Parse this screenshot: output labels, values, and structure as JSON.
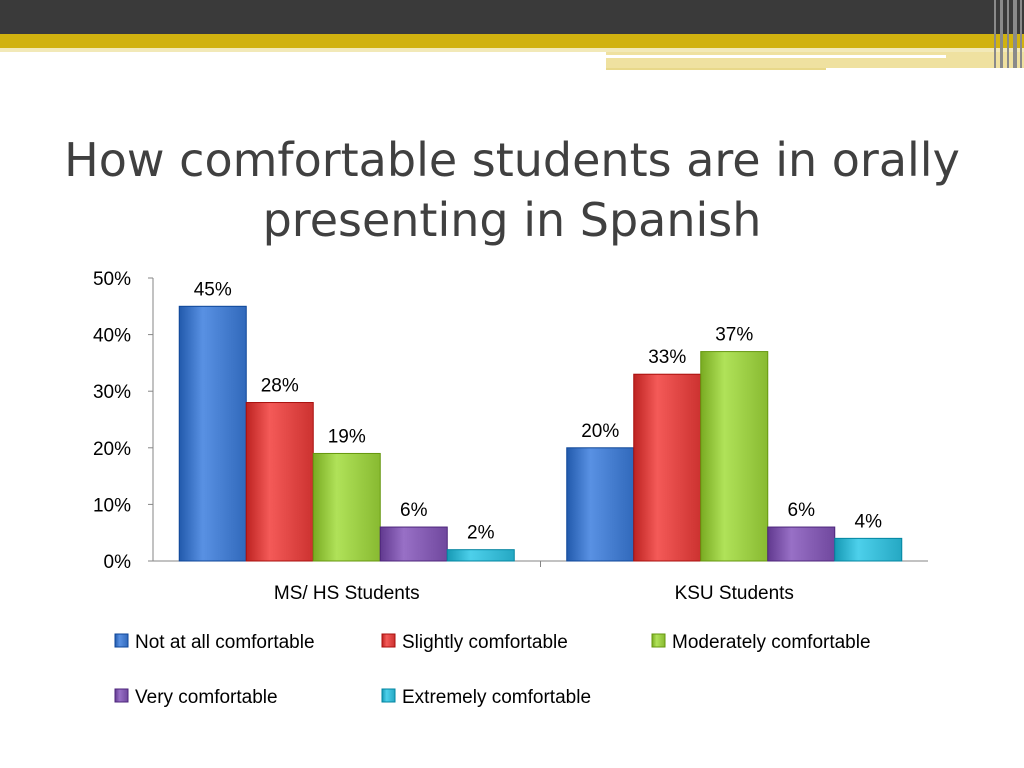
{
  "slide": {
    "title": "How comfortable students are in orally presenting in Spanish"
  },
  "chart_data": {
    "type": "bar",
    "title": "",
    "xlabel": "",
    "ylabel": "",
    "ylim": [
      0,
      50
    ],
    "yticks": [
      0,
      10,
      20,
      30,
      40,
      50
    ],
    "ytick_labels": [
      "0%",
      "10%",
      "20%",
      "30%",
      "40%",
      "50%"
    ],
    "categories": [
      "MS/ HS Students",
      "KSU Students"
    ],
    "series": [
      {
        "name": "Not at all comfortable",
        "values": [
          45,
          20
        ],
        "color": "#3b73c5"
      },
      {
        "name": "Slightly comfortable",
        "values": [
          28,
          33
        ],
        "color": "#d63c3a"
      },
      {
        "name": "Moderately comfortable",
        "values": [
          19,
          37
        ],
        "color": "#92c43b"
      },
      {
        "name": "Very comfortable",
        "values": [
          6,
          6
        ],
        "color": "#7a52a8"
      },
      {
        "name": "Extremely comfortable",
        "values": [
          2,
          4
        ],
        "color": "#2fb2cd"
      }
    ],
    "data_labels": [
      [
        "45%",
        "20%"
      ],
      [
        "28%",
        "33%"
      ],
      [
        "19%",
        "37%"
      ],
      [
        "6%",
        "6%"
      ],
      [
        "2%",
        "4%"
      ]
    ],
    "grid": false,
    "legend_position": "bottom"
  }
}
